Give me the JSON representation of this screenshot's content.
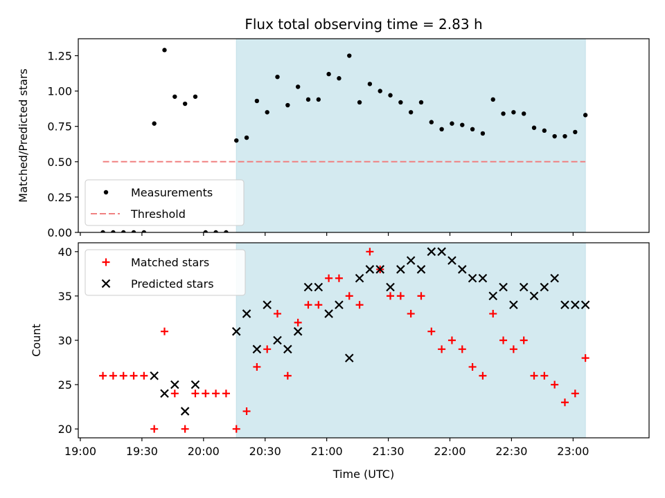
{
  "figure": {
    "title": "Flux total observing time = 2.83 h"
  },
  "chart_data": [
    {
      "type": "scatter",
      "ylabel": "Matched/Predicted stars",
      "xlabel": "",
      "xlim": [
        "18:59",
        "23:37"
      ],
      "ylim": [
        0,
        1.37
      ],
      "yticks": [
        0,
        0.25,
        0.5,
        0.75,
        1.0,
        1.25
      ],
      "ytick_labels": [
        "0.00",
        "0.25",
        "0.50",
        "0.75",
        "1.00",
        "1.25"
      ],
      "xticks": [
        "19:00",
        "19:30",
        "20:00",
        "20:30",
        "21:00",
        "21:30",
        "22:00",
        "22:30",
        "23:00"
      ],
      "shaded_region": {
        "from": "20:16",
        "to": "23:06",
        "color": "#d4eaf0"
      },
      "legend": {
        "position": "lower-left",
        "entries": [
          {
            "label": "Measurements",
            "marker": "dot",
            "color": "#000000"
          },
          {
            "label": "Threshold",
            "marker": "dashed-line",
            "color": "#f08080"
          }
        ]
      },
      "threshold": {
        "name": "Threshold",
        "y": 0.5,
        "x_from": "19:11",
        "x_to": "23:06",
        "color": "#f08080"
      },
      "series": [
        {
          "name": "Measurements",
          "color": "#000000",
          "points": [
            [
              "19:11",
              0.0
            ],
            [
              "19:16",
              0.0
            ],
            [
              "19:21",
              0.0
            ],
            [
              "19:26",
              0.0
            ],
            [
              "19:31",
              0.0
            ],
            [
              "19:36",
              0.77
            ],
            [
              "19:41",
              1.29
            ],
            [
              "19:46",
              0.96
            ],
            [
              "19:51",
              0.91
            ],
            [
              "19:56",
              0.96
            ],
            [
              "20:01",
              0.0
            ],
            [
              "20:06",
              0.0
            ],
            [
              "20:11",
              0.0
            ],
            [
              "20:16",
              0.65
            ],
            [
              "20:21",
              0.67
            ],
            [
              "20:26",
              0.93
            ],
            [
              "20:31",
              0.85
            ],
            [
              "20:36",
              1.1
            ],
            [
              "20:41",
              0.9
            ],
            [
              "20:46",
              1.03
            ],
            [
              "20:51",
              0.94
            ],
            [
              "20:56",
              0.94
            ],
            [
              "21:01",
              1.12
            ],
            [
              "21:06",
              1.09
            ],
            [
              "21:11",
              1.25
            ],
            [
              "21:16",
              0.92
            ],
            [
              "21:21",
              1.05
            ],
            [
              "21:26",
              1.0
            ],
            [
              "21:31",
              0.97
            ],
            [
              "21:36",
              0.92
            ],
            [
              "21:41",
              0.85
            ],
            [
              "21:46",
              0.92
            ],
            [
              "21:51",
              0.78
            ],
            [
              "21:56",
              0.73
            ],
            [
              "22:01",
              0.77
            ],
            [
              "22:06",
              0.76
            ],
            [
              "22:11",
              0.73
            ],
            [
              "22:16",
              0.7
            ],
            [
              "22:21",
              0.94
            ],
            [
              "22:26",
              0.84
            ],
            [
              "22:31",
              0.85
            ],
            [
              "22:36",
              0.84
            ],
            [
              "22:41",
              0.74
            ],
            [
              "22:46",
              0.72
            ],
            [
              "22:51",
              0.68
            ],
            [
              "22:56",
              0.68
            ],
            [
              "23:01",
              0.71
            ],
            [
              "23:06",
              0.83
            ]
          ]
        }
      ]
    },
    {
      "type": "scatter",
      "ylabel": "Count",
      "xlabel": "Time (UTC)",
      "xlim": [
        "18:59",
        "23:37"
      ],
      "ylim": [
        19,
        41
      ],
      "yticks": [
        20,
        25,
        30,
        35,
        40
      ],
      "ytick_labels": [
        "20",
        "25",
        "30",
        "35",
        "40"
      ],
      "xticks": [
        "19:00",
        "19:30",
        "20:00",
        "20:30",
        "21:00",
        "21:30",
        "22:00",
        "22:30",
        "23:00"
      ],
      "shaded_region": {
        "from": "20:16",
        "to": "23:06",
        "color": "#d4eaf0"
      },
      "legend": {
        "position": "top-left",
        "entries": [
          {
            "label": "Matched stars",
            "marker": "plus",
            "color": "#ff0000"
          },
          {
            "label": "Predicted stars",
            "marker": "x",
            "color": "#000000"
          }
        ]
      },
      "series": [
        {
          "name": "Matched stars",
          "marker": "plus",
          "color": "#ff0000",
          "points": [
            [
              "19:11",
              26
            ],
            [
              "19:16",
              26
            ],
            [
              "19:21",
              26
            ],
            [
              "19:26",
              26
            ],
            [
              "19:31",
              26
            ],
            [
              "19:36",
              20
            ],
            [
              "19:41",
              31
            ],
            [
              "19:46",
              24
            ],
            [
              "19:51",
              20
            ],
            [
              "19:56",
              24
            ],
            [
              "20:01",
              24
            ],
            [
              "20:06",
              24
            ],
            [
              "20:11",
              24
            ],
            [
              "20:16",
              20
            ],
            [
              "20:21",
              22
            ],
            [
              "20:26",
              27
            ],
            [
              "20:31",
              29
            ],
            [
              "20:36",
              33
            ],
            [
              "20:41",
              26
            ],
            [
              "20:46",
              32
            ],
            [
              "20:51",
              34
            ],
            [
              "20:56",
              34
            ],
            [
              "21:01",
              37
            ],
            [
              "21:06",
              37
            ],
            [
              "21:11",
              35
            ],
            [
              "21:16",
              34
            ],
            [
              "21:21",
              40
            ],
            [
              "21:26",
              38
            ],
            [
              "21:31",
              35
            ],
            [
              "21:36",
              35
            ],
            [
              "21:41",
              33
            ],
            [
              "21:46",
              35
            ],
            [
              "21:51",
              31
            ],
            [
              "21:56",
              29
            ],
            [
              "22:01",
              30
            ],
            [
              "22:06",
              29
            ],
            [
              "22:11",
              27
            ],
            [
              "22:16",
              26
            ],
            [
              "22:21",
              33
            ],
            [
              "22:26",
              30
            ],
            [
              "22:31",
              29
            ],
            [
              "22:36",
              30
            ],
            [
              "22:41",
              26
            ],
            [
              "22:46",
              26
            ],
            [
              "22:51",
              25
            ],
            [
              "22:56",
              23
            ],
            [
              "23:01",
              24
            ],
            [
              "23:06",
              28
            ]
          ]
        },
        {
          "name": "Predicted stars",
          "marker": "x",
          "color": "#000000",
          "points": [
            [
              "19:36",
              26
            ],
            [
              "19:41",
              24
            ],
            [
              "19:46",
              25
            ],
            [
              "19:51",
              22
            ],
            [
              "19:56",
              25
            ],
            [
              "20:16",
              31
            ],
            [
              "20:21",
              33
            ],
            [
              "20:26",
              29
            ],
            [
              "20:31",
              34
            ],
            [
              "20:36",
              30
            ],
            [
              "20:41",
              29
            ],
            [
              "20:46",
              31
            ],
            [
              "20:51",
              36
            ],
            [
              "20:56",
              36
            ],
            [
              "21:01",
              33
            ],
            [
              "21:06",
              34
            ],
            [
              "21:11",
              28
            ],
            [
              "21:16",
              37
            ],
            [
              "21:21",
              38
            ],
            [
              "21:26",
              38
            ],
            [
              "21:31",
              36
            ],
            [
              "21:36",
              38
            ],
            [
              "21:41",
              39
            ],
            [
              "21:46",
              38
            ],
            [
              "21:51",
              40
            ],
            [
              "21:56",
              40
            ],
            [
              "22:01",
              39
            ],
            [
              "22:06",
              38
            ],
            [
              "22:11",
              37
            ],
            [
              "22:16",
              37
            ],
            [
              "22:21",
              35
            ],
            [
              "22:26",
              36
            ],
            [
              "22:31",
              34
            ],
            [
              "22:36",
              36
            ],
            [
              "22:41",
              35
            ],
            [
              "22:46",
              36
            ],
            [
              "22:51",
              37
            ],
            [
              "22:56",
              34
            ],
            [
              "23:01",
              34
            ],
            [
              "23:06",
              34
            ]
          ]
        }
      ]
    }
  ]
}
